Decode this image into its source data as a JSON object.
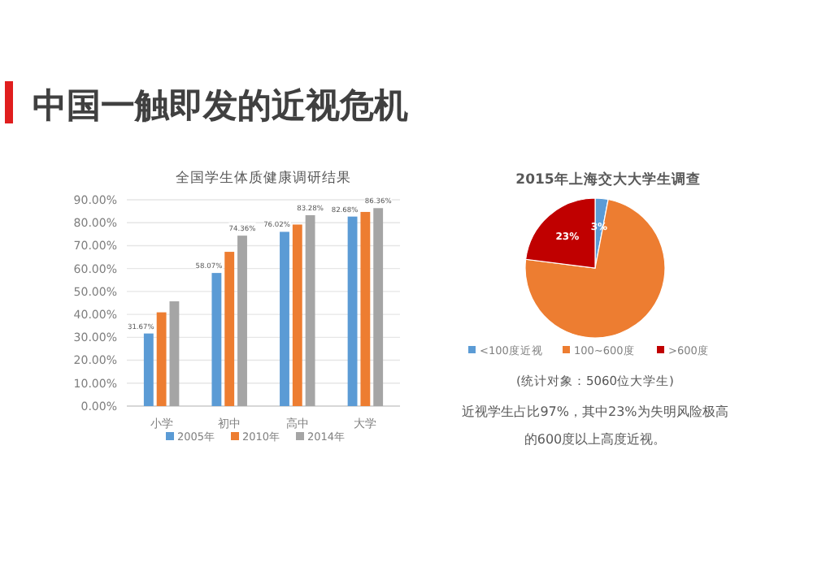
{
  "chart_data": [
    {
      "type": "other",
      "title": "中国一触即发的近视危机"
    },
    {
      "type": "bar",
      "title": "全国学生体质健康调研结果",
      "categories": [
        "小学",
        "初中",
        "高中",
        "大学"
      ],
      "series": [
        {
          "name": "2005年",
          "color": "#5b9bd5",
          "values": [
            31.67,
            58.07,
            76.02,
            82.68
          ],
          "value_labels": [
            "31.67%",
            "58.07%",
            "76.02%",
            "82.68%"
          ]
        },
        {
          "name": "2010年",
          "color": "#ed7d31",
          "values": [
            40.9,
            67.3,
            79.2,
            84.7
          ]
        },
        {
          "name": "2014年",
          "color": "#a5a5a5",
          "values": [
            45.7,
            74.36,
            83.28,
            86.36
          ],
          "value_labels": [
            null,
            "74.36%",
            "83.28%",
            "86.36%"
          ]
        }
      ],
      "ylim": [
        0,
        90
      ],
      "yticks": [
        {
          "value": 0,
          "label": "0.00%"
        },
        {
          "value": 10,
          "label": "10.00%"
        },
        {
          "value": 20,
          "label": "20.00%"
        },
        {
          "value": 30,
          "label": "30.00%"
        },
        {
          "value": 40,
          "label": "40.00%"
        },
        {
          "value": 50,
          "label": "50.00%"
        },
        {
          "value": 60,
          "label": "60.00%"
        },
        {
          "value": 70,
          "label": "70.00%"
        },
        {
          "value": 80,
          "label": "80.00%"
        },
        {
          "value": 90,
          "label": "90.00%"
        }
      ],
      "grid": "y",
      "legend": "bottom"
    },
    {
      "type": "pie",
      "title": "2015年上海交大大学生调查",
      "categories": [
        "<100度近视",
        "100~600度",
        ">600度"
      ],
      "values": [
        3,
        74,
        23
      ],
      "colors": [
        "#5b9bd5",
        "#ed7d31",
        "#c00000"
      ],
      "value_labels": [
        "3%",
        null,
        "23%"
      ],
      "legend": "bottom",
      "annotations": [
        "(统计对象：5060位大学生)",
        "近视学生占比97%，其中23%为失明风险极高",
        "的600度以上高度近视。"
      ]
    }
  ]
}
